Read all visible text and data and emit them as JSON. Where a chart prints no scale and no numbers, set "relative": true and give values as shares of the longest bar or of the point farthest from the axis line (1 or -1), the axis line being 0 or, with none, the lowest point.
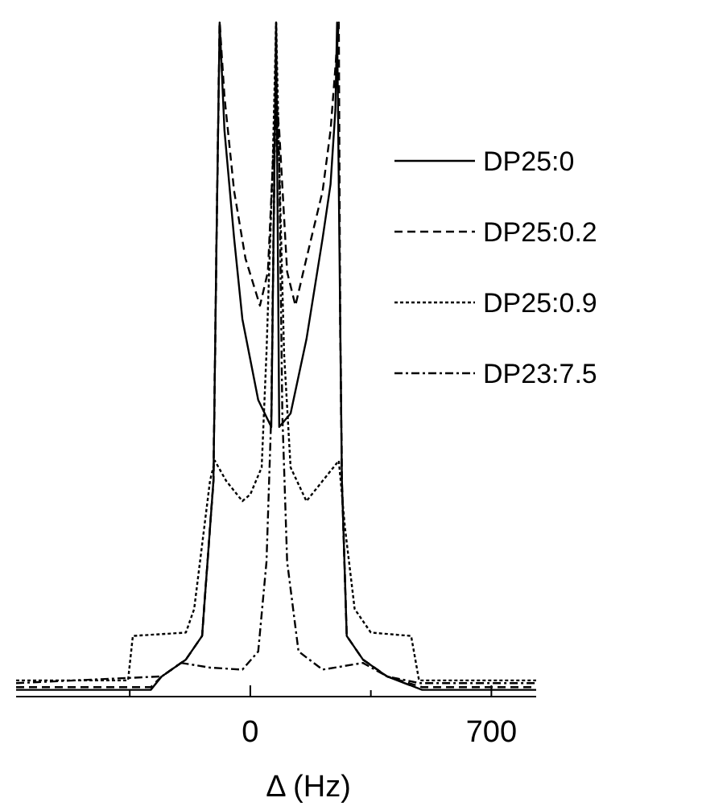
{
  "chart_data": {
    "type": "line",
    "relative": true,
    "xlabel": "Δ (Hz)",
    "xlim": [
      -680,
      830
    ],
    "xticks": [
      {
        "value": -350,
        "label": null
      },
      0,
      {
        "value": 350,
        "label": null
      },
      700
    ],
    "legend": "top right",
    "marker": "none",
    "series": [
      {
        "name": "DP25:0",
        "color": "#000000",
        "line_style": "solid",
        "x": [
          -680,
          -289,
          -257,
          -187,
          -140,
          -107,
          -98,
          -89,
          -75,
          -47,
          -23,
          23,
          61,
          75,
          84,
          117,
          163,
          210,
          233,
          247,
          252,
          261,
          266,
          280,
          327,
          397,
          499,
          830
        ],
        "values": [
          0.01,
          0.01,
          0.03,
          0.055,
          0.09,
          0.32,
          0.68,
          1,
          0.84,
          0.68,
          0.56,
          0.44,
          0.4,
          1,
          0.4,
          0.42,
          0.53,
          0.68,
          0.76,
          0.87,
          1,
          0.56,
          0.32,
          0.09,
          0.055,
          0.03,
          0.01,
          0.01
        ]
      },
      {
        "name": "DP25:0.2",
        "color": "#000000",
        "line_style": "dashed",
        "x": [
          -680,
          -289,
          -257,
          -187,
          -140,
          -107,
          -98,
          -89,
          -75,
          -47,
          -14,
          28,
          51,
          70,
          75,
          84,
          107,
          131,
          163,
          210,
          233,
          257,
          261,
          266,
          280,
          327,
          397,
          499,
          830
        ],
        "values": [
          0.014,
          0.014,
          0.03,
          0.055,
          0.09,
          0.32,
          0.68,
          1,
          0.89,
          0.75,
          0.65,
          0.58,
          0.63,
          0.84,
          0.89,
          0.84,
          0.63,
          0.58,
          0.65,
          0.75,
          0.84,
          1,
          0.56,
          0.32,
          0.09,
          0.055,
          0.03,
          0.014,
          0.014
        ]
      },
      {
        "name": "DP25:0.9",
        "color": "#000000",
        "line_style": "dotted",
        "x": [
          -680,
          -355,
          -341,
          -187,
          -163,
          -117,
          -103,
          -70,
          -23,
          0,
          33,
          47,
          65,
          75,
          84,
          98,
          117,
          163,
          210,
          257,
          275,
          303,
          350,
          467,
          490,
          830
        ],
        "values": [
          0.024,
          0.024,
          0.09,
          0.095,
          0.13,
          0.32,
          0.35,
          0.32,
          0.29,
          0.3,
          0.34,
          0.51,
          0.79,
          1,
          0.79,
          0.51,
          0.34,
          0.29,
          0.32,
          0.35,
          0.25,
          0.13,
          0.095,
          0.09,
          0.024,
          0.024
        ]
      },
      {
        "name": "DP23:7.5",
        "color": "#000000",
        "line_style": "dashdot",
        "x": [
          -680,
          -257,
          -201,
          -117,
          -23,
          23,
          47,
          61,
          70,
          75,
          84,
          93,
          107,
          140,
          210,
          327,
          397,
          490,
          830
        ],
        "values": [
          0.02,
          0.03,
          0.05,
          0.043,
          0.04,
          0.067,
          0.2,
          0.42,
          0.79,
          0.89,
          0.79,
          0.42,
          0.2,
          0.067,
          0.04,
          0.05,
          0.03,
          0.02,
          0.02
        ]
      }
    ]
  }
}
